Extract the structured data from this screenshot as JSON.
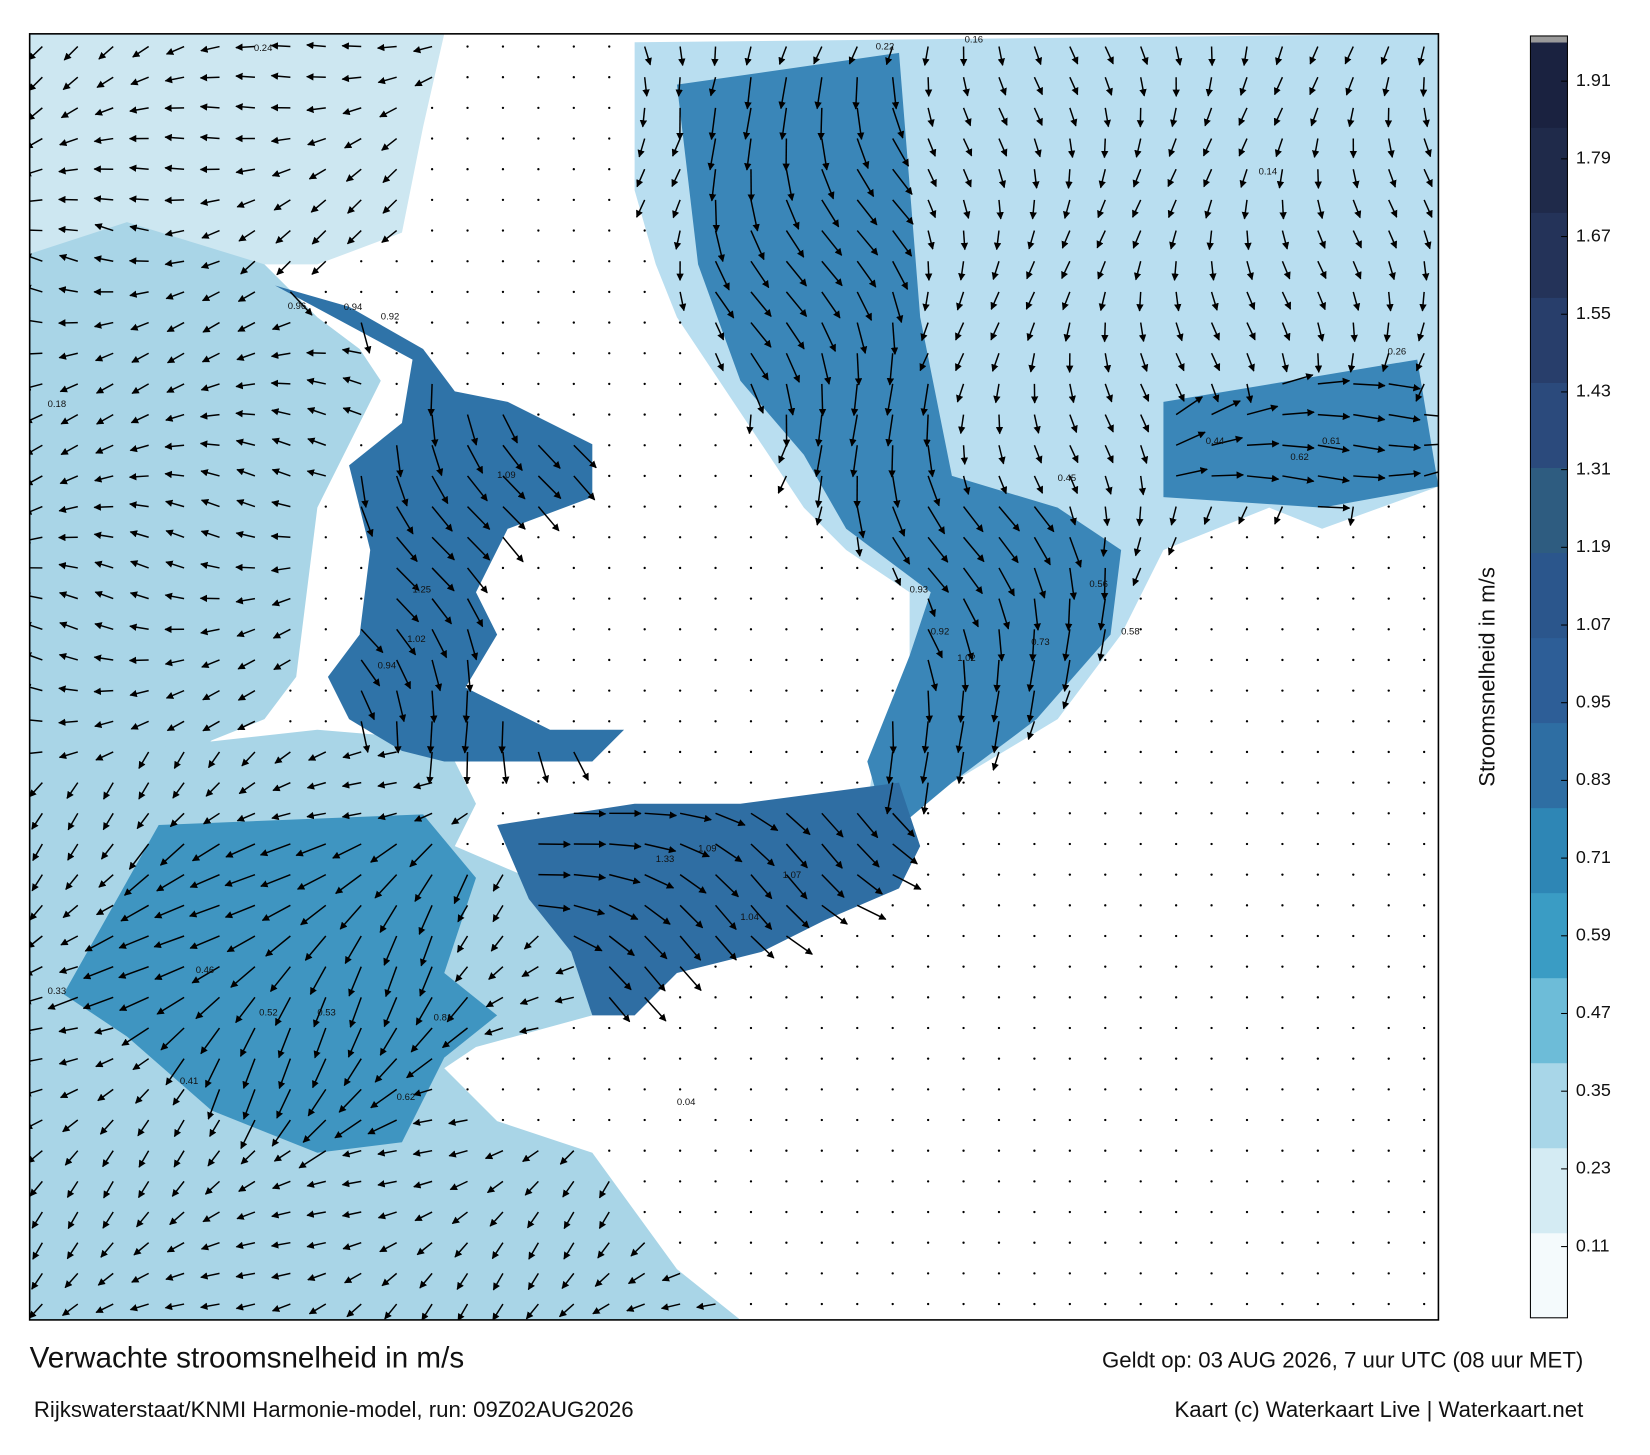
{
  "title": "Verwachte stroomsnelheid in m/s",
  "subtitle": "Rijkswaterstaat/KNMI Harmonie-model, run: 09Z02AUG2026",
  "valid_time": "Geldt op: 03 AUG 2026, 7 uur UTC (08 uur MET)",
  "credit": "Kaart (c) Waterkaart Live | Waterkaart.net",
  "colorbar": {
    "label": "Stroomsnelheid in m/s",
    "range": [
      0,
      1.97
    ],
    "ticks": [
      0.11,
      0.23,
      0.35,
      0.47,
      0.59,
      0.71,
      0.83,
      0.95,
      1.07,
      1.19,
      1.31,
      1.43,
      1.55,
      1.67,
      1.79,
      1.91
    ],
    "colors": [
      "#f4fafc",
      "#d4ebf3",
      "#a8d6e8",
      "#6dbcd8",
      "#3a9cc4",
      "#2e86b5",
      "#2e6ea3",
      "#2d5e97",
      "#2b568c",
      "#2e5c80",
      "#2b4a7c",
      "#283e6b",
      "#243359",
      "#1f2a4a",
      "#1a2240"
    ]
  },
  "speed_labels": [
    1.25,
    1.09,
    1.02,
    0.94,
    0.94,
    0.96,
    0.92,
    0.24,
    0.22,
    0.16,
    0.14,
    0.26,
    0.61,
    0.62,
    0.93,
    1.02,
    0.92,
    1.09,
    1.33,
    1.07,
    1.04,
    0.46,
    0.52,
    0.53,
    0.81,
    0.62,
    0.04,
    0.41,
    0.33,
    0.18,
    0.44,
    0.45,
    0.56,
    0.58,
    0.73
  ]
}
